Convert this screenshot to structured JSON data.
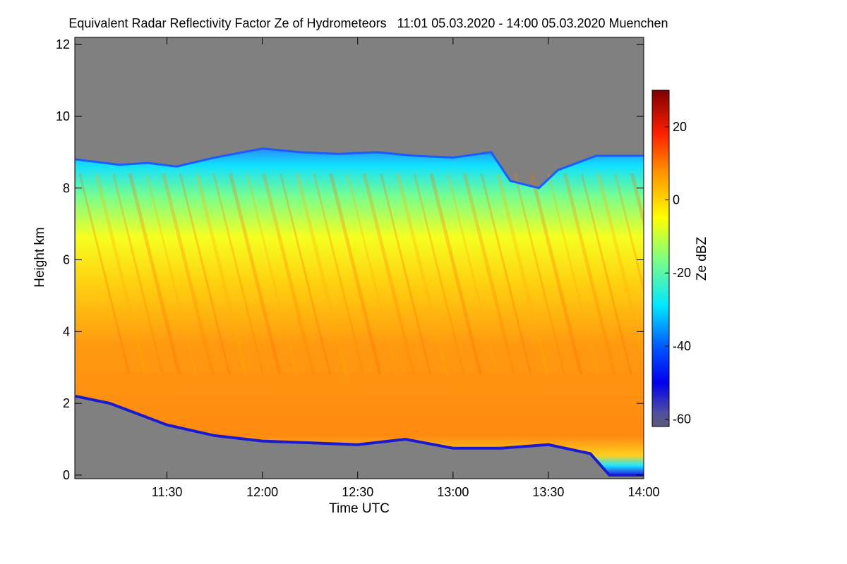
{
  "chart_data": {
    "type": "heatmap",
    "title": "Equivalent Radar Reflectivity Factor Ze of Hydrometeors   11:01 05.03.2020 - 14:00 05.03.2020 Muenchen",
    "xlabel": "Time UTC",
    "ylabel": "Height km",
    "colorbar_label": "Ze dBZ",
    "x_range_hours": [
      11.0167,
      14.0
    ],
    "x_ticks": [
      {
        "label": "11:30",
        "value": 11.5
      },
      {
        "label": "12:00",
        "value": 12.0
      },
      {
        "label": "12:30",
        "value": 12.5
      },
      {
        "label": "13:00",
        "value": 13.0
      },
      {
        "label": "13:30",
        "value": 13.5
      },
      {
        "label": "14:00",
        "value": 14.0
      }
    ],
    "y_range_km": [
      -0.1,
      12.2
    ],
    "y_ticks": [
      {
        "label": "0",
        "value": 0
      },
      {
        "label": "2",
        "value": 2
      },
      {
        "label": "4",
        "value": 4
      },
      {
        "label": "6",
        "value": 6
      },
      {
        "label": "8",
        "value": 8
      },
      {
        "label": "10",
        "value": 10
      },
      {
        "label": "12",
        "value": 12
      }
    ],
    "colorbar_range_dbz": [
      -62,
      30
    ],
    "colorbar_ticks": [
      {
        "label": "20",
        "value": 20
      },
      {
        "label": "0",
        "value": 0
      },
      {
        "label": "-20",
        "value": -20
      },
      {
        "label": "-40",
        "value": -40
      },
      {
        "label": "-60",
        "value": -60
      }
    ],
    "no_signal_color": "#808080",
    "cloud_top_km": [
      {
        "t": 11.02,
        "h": 8.8
      },
      {
        "t": 11.25,
        "h": 8.65
      },
      {
        "t": 11.4,
        "h": 8.7
      },
      {
        "t": 11.55,
        "h": 8.6
      },
      {
        "t": 11.75,
        "h": 8.85
      },
      {
        "t": 12.0,
        "h": 9.1
      },
      {
        "t": 12.2,
        "h": 9.0
      },
      {
        "t": 12.4,
        "h": 8.95
      },
      {
        "t": 12.6,
        "h": 9.0
      },
      {
        "t": 12.8,
        "h": 8.9
      },
      {
        "t": 13.0,
        "h": 8.85
      },
      {
        "t": 13.2,
        "h": 9.0
      },
      {
        "t": 13.3,
        "h": 8.2
      },
      {
        "t": 13.45,
        "h": 8.0
      },
      {
        "t": 13.55,
        "h": 8.5
      },
      {
        "t": 13.75,
        "h": 8.9
      },
      {
        "t": 14.0,
        "h": 8.9
      }
    ],
    "cloud_base_km": [
      {
        "t": 11.02,
        "h": 2.2
      },
      {
        "t": 11.2,
        "h": 2.0
      },
      {
        "t": 11.35,
        "h": 1.7
      },
      {
        "t": 11.5,
        "h": 1.4
      },
      {
        "t": 11.75,
        "h": 1.1
      },
      {
        "t": 12.0,
        "h": 0.95
      },
      {
        "t": 12.25,
        "h": 0.9
      },
      {
        "t": 12.5,
        "h": 0.85
      },
      {
        "t": 12.75,
        "h": 1.0
      },
      {
        "t": 13.0,
        "h": 0.75
      },
      {
        "t": 13.25,
        "h": 0.75
      },
      {
        "t": 13.5,
        "h": 0.85
      },
      {
        "t": 13.72,
        "h": 0.6
      },
      {
        "t": 13.82,
        "h": 0.0
      },
      {
        "t": 14.0,
        "h": 0.0
      }
    ],
    "mean_profile_dbz": [
      {
        "h": 0.9,
        "ze": 12
      },
      {
        "h": 3.5,
        "ze": 10
      },
      {
        "h": 5.5,
        "ze": 2
      },
      {
        "h": 7.0,
        "ze": -9
      },
      {
        "h": 8.5,
        "ze": -22
      },
      {
        "h": 9.0,
        "ze": -30
      }
    ]
  }
}
